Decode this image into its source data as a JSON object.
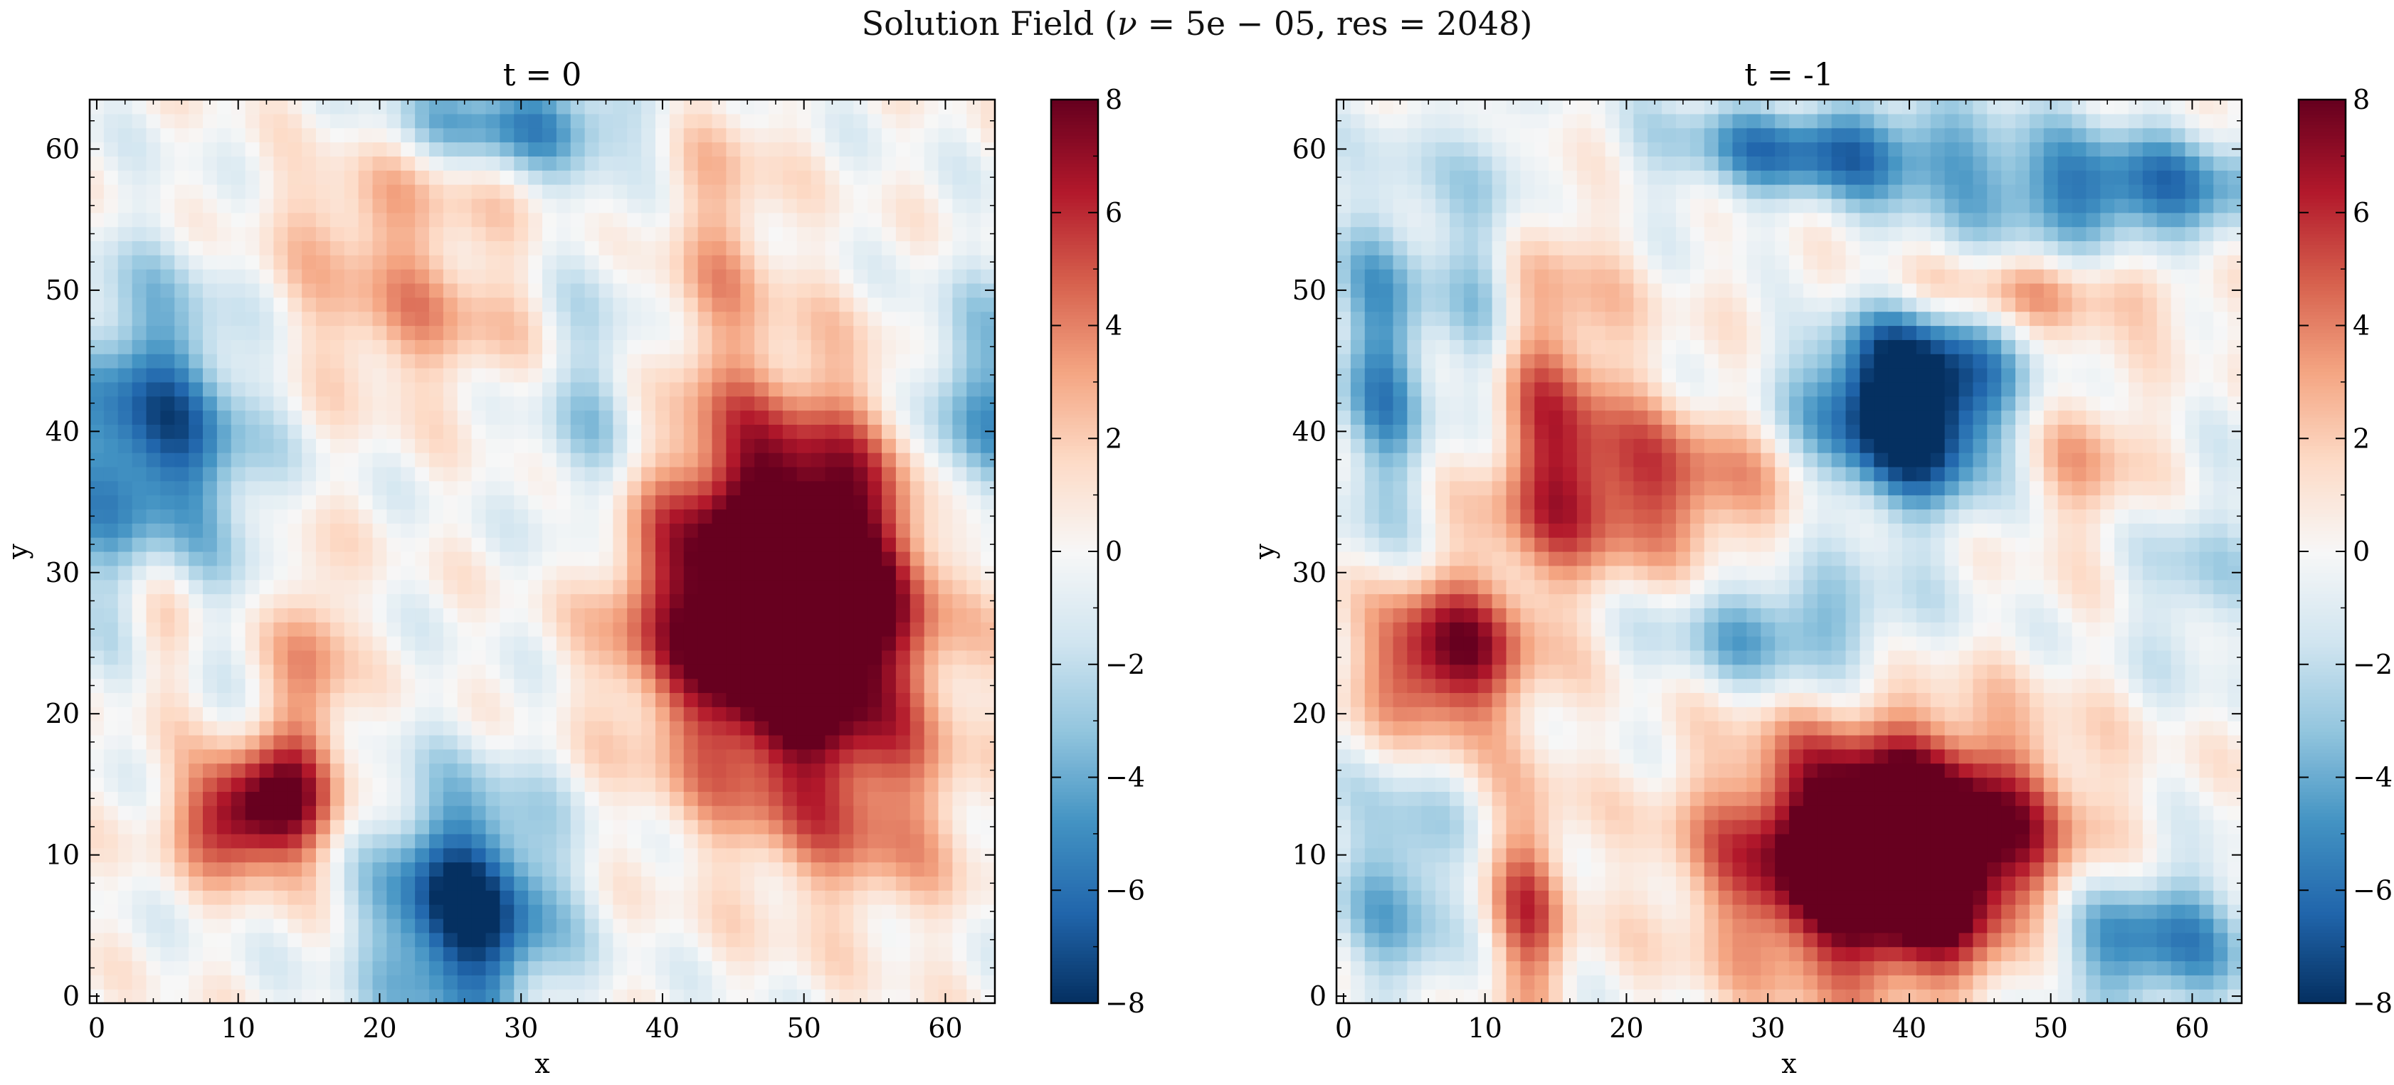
{
  "figure": {
    "suptitle_prefix": "Solution Field (",
    "nu_symbol": "ν",
    "nu_text": " = 5e − 05, res = 2048)",
    "suptitle": "Solution Field (ν = 5e − 05, res = 2048)"
  },
  "colormap": {
    "name": "RdBu_r",
    "low": "#053061",
    "mid": "#f7f7f7",
    "high": "#67001f"
  },
  "chart_data": [
    {
      "type": "heatmap",
      "title": "t = 0",
      "xlabel": "x",
      "ylabel": "y",
      "grid": "64x64",
      "xlim": [
        0,
        63
      ],
      "ylim": [
        0,
        63
      ],
      "x_ticks": [
        "0",
        "10",
        "20",
        "30",
        "40",
        "50",
        "60"
      ],
      "y_ticks": [
        "0",
        "10",
        "20",
        "30",
        "40",
        "50",
        "60"
      ],
      "colorbar": {
        "vmin": -8,
        "vmax": 8,
        "ticks": [
          "−8",
          "−6",
          "−4",
          "−2",
          "0",
          "2",
          "4",
          "6",
          "8"
        ]
      },
      "features": [
        {
          "kind": "vortex",
          "x": 49,
          "y": 28,
          "value": 8
        },
        {
          "kind": "vortex",
          "x": 11,
          "y": 13,
          "value": 7
        },
        {
          "kind": "vortex",
          "x": 4,
          "y": 39,
          "value": -5.5
        },
        {
          "kind": "vortex",
          "x": 26,
          "y": 6,
          "value": -6.5
        },
        {
          "kind": "vortex",
          "x": 62,
          "y": 41,
          "value": -4
        },
        {
          "kind": "vortex",
          "x": 30,
          "y": 62,
          "value": -4
        }
      ]
    },
    {
      "type": "heatmap",
      "title": "t = -1",
      "xlabel": "x",
      "ylabel": "y",
      "grid": "64x64",
      "xlim": [
        0,
        63
      ],
      "ylim": [
        0,
        63
      ],
      "x_ticks": [
        "0",
        "10",
        "20",
        "30",
        "40",
        "50",
        "60"
      ],
      "y_ticks": [
        "0",
        "10",
        "20",
        "30",
        "40",
        "50",
        "60"
      ],
      "colorbar": {
        "vmin": -8,
        "vmax": 8,
        "ticks": [
          "−8",
          "−6",
          "−4",
          "−2",
          "0",
          "2",
          "4",
          "6",
          "8"
        ]
      },
      "features": [
        {
          "kind": "vortex",
          "x": 39,
          "y": 10,
          "value": 8
        },
        {
          "kind": "vortex",
          "x": 40,
          "y": 42,
          "value": -8
        },
        {
          "kind": "vortex",
          "x": 8,
          "y": 24,
          "value": 6
        },
        {
          "kind": "vortex",
          "x": 34,
          "y": 60,
          "value": -5
        },
        {
          "kind": "vortex",
          "x": 55,
          "y": 57,
          "value": -4.5
        },
        {
          "kind": "vortex",
          "x": 55,
          "y": 4,
          "value": -5
        },
        {
          "kind": "vortex",
          "x": 31,
          "y": 26,
          "value": -3.5
        }
      ]
    }
  ]
}
